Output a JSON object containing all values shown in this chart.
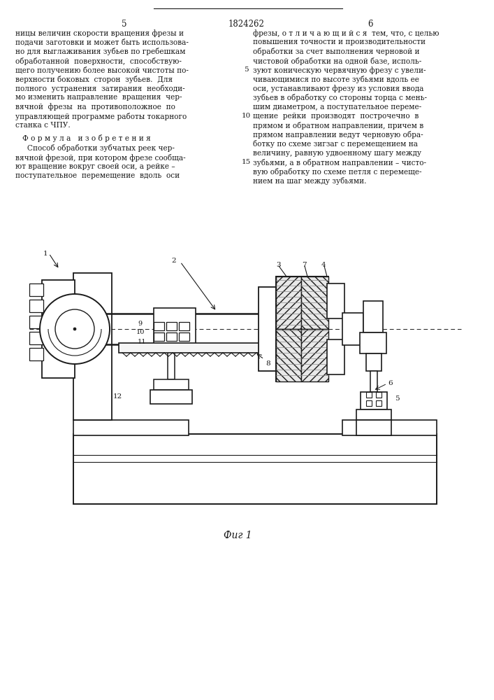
{
  "background_color": "#ffffff",
  "page_number_left": "5",
  "page_number_center": "1824262",
  "page_number_right": "6",
  "left_col_text": [
    "ницы величин скорости вращения фрезы и",
    "подачи заготовки и может быть использова-",
    "но для выглаживания зубьев по гребешкам",
    "обработанной  поверхности,  способствую-",
    "щего получению более высокой чистоты по-",
    "верхности боковых  сторон  зубьев.  Для",
    "полного  устранения  затирания  необходи-",
    "мо изменить направление  вращения  чер-",
    "вячной  фрезы  на  противоположное  по",
    "управляющей программе работы токарного",
    "станка с ЧПУ."
  ],
  "formula_header": "Ф о р м у л а   и з о б р е т е н и я",
  "formula_text": [
    "     Способ обработки зубчатых реек чер-",
    "вячной фрезой, при котором фрезе сообща-",
    "ют вращение вокруг своей оси, а рейке –",
    "поступательное  перемещение  вдоль  оси"
  ],
  "right_col_text": [
    "фрезы, о т л и ч а ю щ и й с я  тем, что, с целью",
    "повышения точности и производительности",
    "обработки за счет выполнения черновой и",
    "чистовой обработки на одной базе, исполь-",
    "зуют коническую червячную фрезу с увели-",
    "чивающимися по высоте зубьями вдоль ее",
    "оси, устанавливают фрезу из условия ввода",
    "зубьев в обработку со стороны торца с мень-",
    "шим диаметром, а поступательное переме-",
    "щение  рейки  производят  построчечно  в",
    "прямом и обратном направлении, причем в",
    "прямом направлении ведут черновую обра-",
    "ботку по схеме зигзаг с перемещением на",
    "величину, равную удвоенному шагу между",
    "зубьями, а в обратном направлении – чисто-",
    "вую обработку по схеме петля с перемеще-",
    "нием на шаг между зубьями."
  ],
  "fig_caption": "Фиг 1"
}
